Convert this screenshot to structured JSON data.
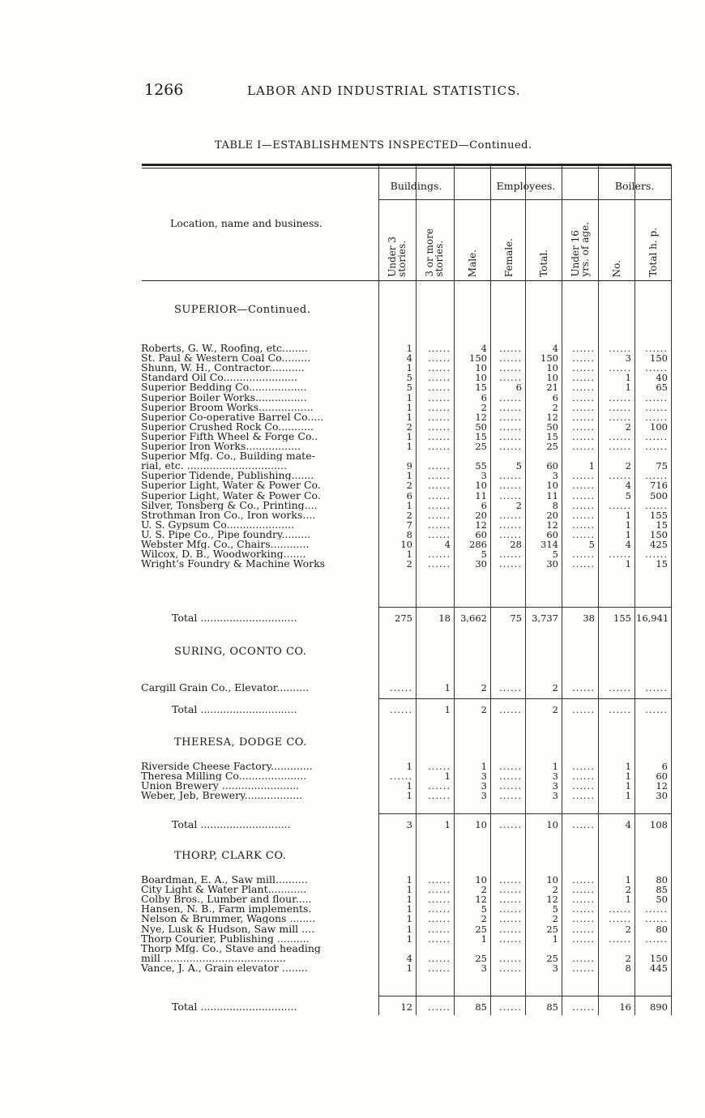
{
  "page_number": "1266",
  "running_head": "LABOR AND INDUSTRIAL STATISTICS.",
  "table_title": "TABLE I—ESTABLISHMENTS INSPECTED—Continued.",
  "header": {
    "location": "Location, name and business.",
    "groups": [
      "Buildings.",
      "Employees.",
      "Boilers."
    ],
    "columns": [
      "Under 3\nstories.",
      "3 or more\nstories.",
      "Male.",
      "Female.",
      "Total.",
      "Under 16\nyrs. of age.",
      "No.",
      "Total h. p."
    ]
  },
  "sections": [
    {
      "title": "SUPERIOR—Continued.",
      "rows": [
        {
          "name": "Roberts, G. W., Roofing, etc........",
          "v": [
            "1",
            null,
            "4",
            null,
            "4",
            null,
            null,
            null
          ]
        },
        {
          "name": "St. Paul & Western Coal Co.........",
          "v": [
            "4",
            null,
            "150",
            null,
            "150",
            null,
            "3",
            "150"
          ]
        },
        {
          "name": "Shunn, W. H., Contractor...........",
          "v": [
            "1",
            null,
            "10",
            null,
            "10",
            null,
            null,
            null
          ]
        },
        {
          "name": "Standard Oil Co.......................",
          "v": [
            "5",
            null,
            "10",
            null,
            "10",
            null,
            "1",
            "40"
          ]
        },
        {
          "name": "Superior Bedding Co..................",
          "v": [
            "5",
            null,
            "15",
            "6",
            "21",
            null,
            "1",
            "65"
          ]
        },
        {
          "name": "Superior Boiler Works................",
          "v": [
            "1",
            null,
            "6",
            null,
            "6",
            null,
            null,
            null
          ]
        },
        {
          "name": "Superior Broom Works.................",
          "v": [
            "1",
            null,
            "2",
            null,
            "2",
            null,
            null,
            null
          ]
        },
        {
          "name": "Superior Co-operative Barrel Co.....",
          "v": [
            "1",
            null,
            "12",
            null,
            "12",
            null,
            null,
            null
          ]
        },
        {
          "name": "Superior Crushed Rock Co...........",
          "v": [
            "2",
            null,
            "50",
            null,
            "50",
            null,
            "2",
            "100"
          ]
        },
        {
          "name": "Superior Fifth Wheel & Forge Co..",
          "v": [
            "1",
            null,
            "15",
            null,
            "15",
            null,
            null,
            null
          ]
        },
        {
          "name": "Superior Iron Works.................",
          "v": [
            "1",
            null,
            "25",
            null,
            "25",
            null,
            null,
            null
          ]
        },
        {
          "name": "Superior Mfg. Co., Building mate-",
          "v": [
            "",
            "",
            "",
            "",
            "",
            "",
            "",
            ""
          ]
        },
        {
          "name": "   rial, etc. ...............................",
          "v": [
            "9",
            null,
            "55",
            "5",
            "60",
            "1",
            "2",
            "75"
          ]
        },
        {
          "name": "Superior Tidende, Publishing.......",
          "v": [
            "1",
            null,
            "3",
            null,
            "3",
            null,
            null,
            null
          ]
        },
        {
          "name": "Superior Light, Water & Power Co.",
          "v": [
            "2",
            null,
            "10",
            null,
            "10",
            null,
            "4",
            "716"
          ]
        },
        {
          "name": "Superior Light, Water & Power Co.",
          "v": [
            "6",
            null,
            "11",
            null,
            "11",
            null,
            "5",
            "500"
          ]
        },
        {
          "name": "Silver, Tonsberg & Co., Printing....",
          "v": [
            "1",
            null,
            "6",
            "2",
            "8",
            null,
            null,
            null
          ]
        },
        {
          "name": "Strothman Iron Co., Iron works....",
          "v": [
            "2",
            null,
            "20",
            null,
            "20",
            null,
            "1",
            "155"
          ]
        },
        {
          "name": "U. S. Gypsum Co.....................",
          "v": [
            "7",
            null,
            "12",
            null,
            "12",
            null,
            "1",
            "15"
          ]
        },
        {
          "name": "U. S. Pipe Co., Pipe foundry.........",
          "v": [
            "8",
            null,
            "60",
            null,
            "60",
            null,
            "1",
            "150"
          ]
        },
        {
          "name": "Webster Mfg. Co., Chairs............",
          "v": [
            "10",
            "4",
            "286",
            "28",
            "314",
            "5",
            "4",
            "425"
          ]
        },
        {
          "name": "Wilcox, D. B., Woodworking.......",
          "v": [
            "1",
            null,
            "5",
            null,
            "5",
            null,
            null,
            null
          ]
        },
        {
          "name": "Wright's Foundry & Machine Works",
          "v": [
            "2",
            null,
            "30",
            null,
            "30",
            null,
            "1",
            "15"
          ]
        }
      ],
      "total": {
        "name": "Total ..............................",
        "v": [
          "275",
          "18",
          "3,662",
          "75",
          "3,737",
          "38",
          "155",
          "16,941"
        ]
      }
    },
    {
      "title": "SURING, OCONTO CO.",
      "rows": [
        {
          "name": "Cargill Grain Co., Elevator..........",
          "v": [
            null,
            "1",
            "2",
            null,
            "2",
            null,
            null,
            null
          ]
        }
      ],
      "total": {
        "name": "Total ..............................",
        "v": [
          null,
          "1",
          "2",
          null,
          "2",
          null,
          null,
          null
        ]
      }
    },
    {
      "title": "THERESA, DODGE CO.",
      "rows": [
        {
          "name": "Riverside Cheese Factory.............",
          "v": [
            "1",
            null,
            "1",
            null,
            "1",
            null,
            "1",
            "6"
          ]
        },
        {
          "name": "Theresa Milling Co.....................",
          "v": [
            null,
            "1",
            "3",
            null,
            "3",
            null,
            "1",
            "60"
          ]
        },
        {
          "name": "Union Brewery ........................",
          "v": [
            "1",
            null,
            "3",
            null,
            "3",
            null,
            "1",
            "12"
          ]
        },
        {
          "name": "Weber, Jeb, Brewery..................",
          "v": [
            "1",
            null,
            "3",
            null,
            "3",
            null,
            "1",
            "30"
          ]
        }
      ],
      "total": {
        "name": "Total ............................",
        "v": [
          "3",
          "1",
          "10",
          null,
          "10",
          null,
          "4",
          "108"
        ]
      }
    },
    {
      "title": "THORP, CLARK CO.",
      "rows": [
        {
          "name": "Boardman, E. A., Saw mill..........",
          "v": [
            "1",
            null,
            "10",
            null,
            "10",
            null,
            "1",
            "80"
          ]
        },
        {
          "name": "City Light & Water Plant............",
          "v": [
            "1",
            null,
            "2",
            null,
            "2",
            null,
            "2",
            "85"
          ]
        },
        {
          "name": "Colby Bros., Lumber and flour.....",
          "v": [
            "1",
            null,
            "12",
            null,
            "12",
            null,
            "1",
            "50"
          ]
        },
        {
          "name": "Hansen, N. B., Farm implements.",
          "v": [
            "1",
            null,
            "5",
            null,
            "5",
            null,
            null,
            null
          ]
        },
        {
          "name": "Nelson & Brummer, Wagons ........",
          "v": [
            "1",
            null,
            "2",
            null,
            "2",
            null,
            null,
            null
          ]
        },
        {
          "name": "Nye, Lusk & Hudson, Saw mill ....",
          "v": [
            "1",
            null,
            "25",
            null,
            "25",
            null,
            "2",
            "80"
          ]
        },
        {
          "name": "Thorp Courier, Publishing ..........",
          "v": [
            "1",
            null,
            "1",
            null,
            "1",
            null,
            null,
            null
          ]
        },
        {
          "name": "Thorp Mfg. Co., Stave and heading",
          "v": [
            "",
            "",
            "",
            "",
            "",
            "",
            "",
            ""
          ]
        },
        {
          "name": "  mill ......................................",
          "v": [
            "4",
            null,
            "25",
            null,
            "25",
            null,
            "2",
            "150"
          ]
        },
        {
          "name": "Vance, J. A., Grain elevator ........",
          "v": [
            "1",
            null,
            "3",
            null,
            "3",
            null,
            "8",
            "445"
          ]
        }
      ],
      "total": {
        "name": "Total ..............................",
        "v": [
          "12",
          null,
          "85",
          null,
          "85",
          null,
          "16",
          "890"
        ]
      }
    }
  ]
}
